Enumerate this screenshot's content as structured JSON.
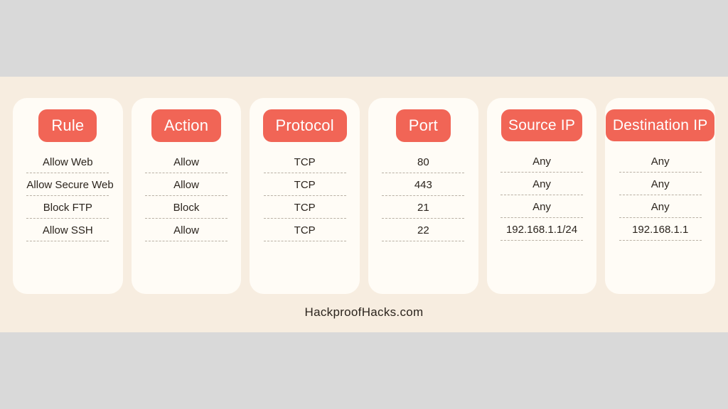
{
  "panel_bg": "#f7ede0",
  "page_bg": "#d9d9d9",
  "card_bg": "#fffcf6",
  "header_bg": "#f16556",
  "header_fg": "#ffffff",
  "text_color": "#2b241d",
  "divider_color": "#b9b0a4",
  "border_radius_card": 20,
  "border_radius_header": 12,
  "header_fontsize": 22,
  "item_fontsize": 15,
  "footer": "HackproofHacks.com",
  "columns": [
    {
      "header": "Rule",
      "tight": false,
      "rows": [
        "Allow Web",
        "Allow Secure Web",
        "Block FTP",
        "Allow SSH"
      ]
    },
    {
      "header": "Action",
      "tight": false,
      "rows": [
        "Allow",
        "Allow",
        "Block",
        "Allow"
      ]
    },
    {
      "header": "Protocol",
      "tight": false,
      "rows": [
        "TCP",
        "TCP",
        "TCP",
        "TCP"
      ]
    },
    {
      "header": "Port",
      "tight": false,
      "rows": [
        "80",
        "443",
        "21",
        "22"
      ]
    },
    {
      "header": "Source IP",
      "tight": true,
      "rows": [
        "Any",
        "Any",
        "Any",
        "192.168.1.1/24"
      ]
    },
    {
      "header": "Destination IP",
      "tight": true,
      "rows": [
        "Any",
        "Any",
        "Any",
        "192.168.1.1"
      ]
    }
  ]
}
